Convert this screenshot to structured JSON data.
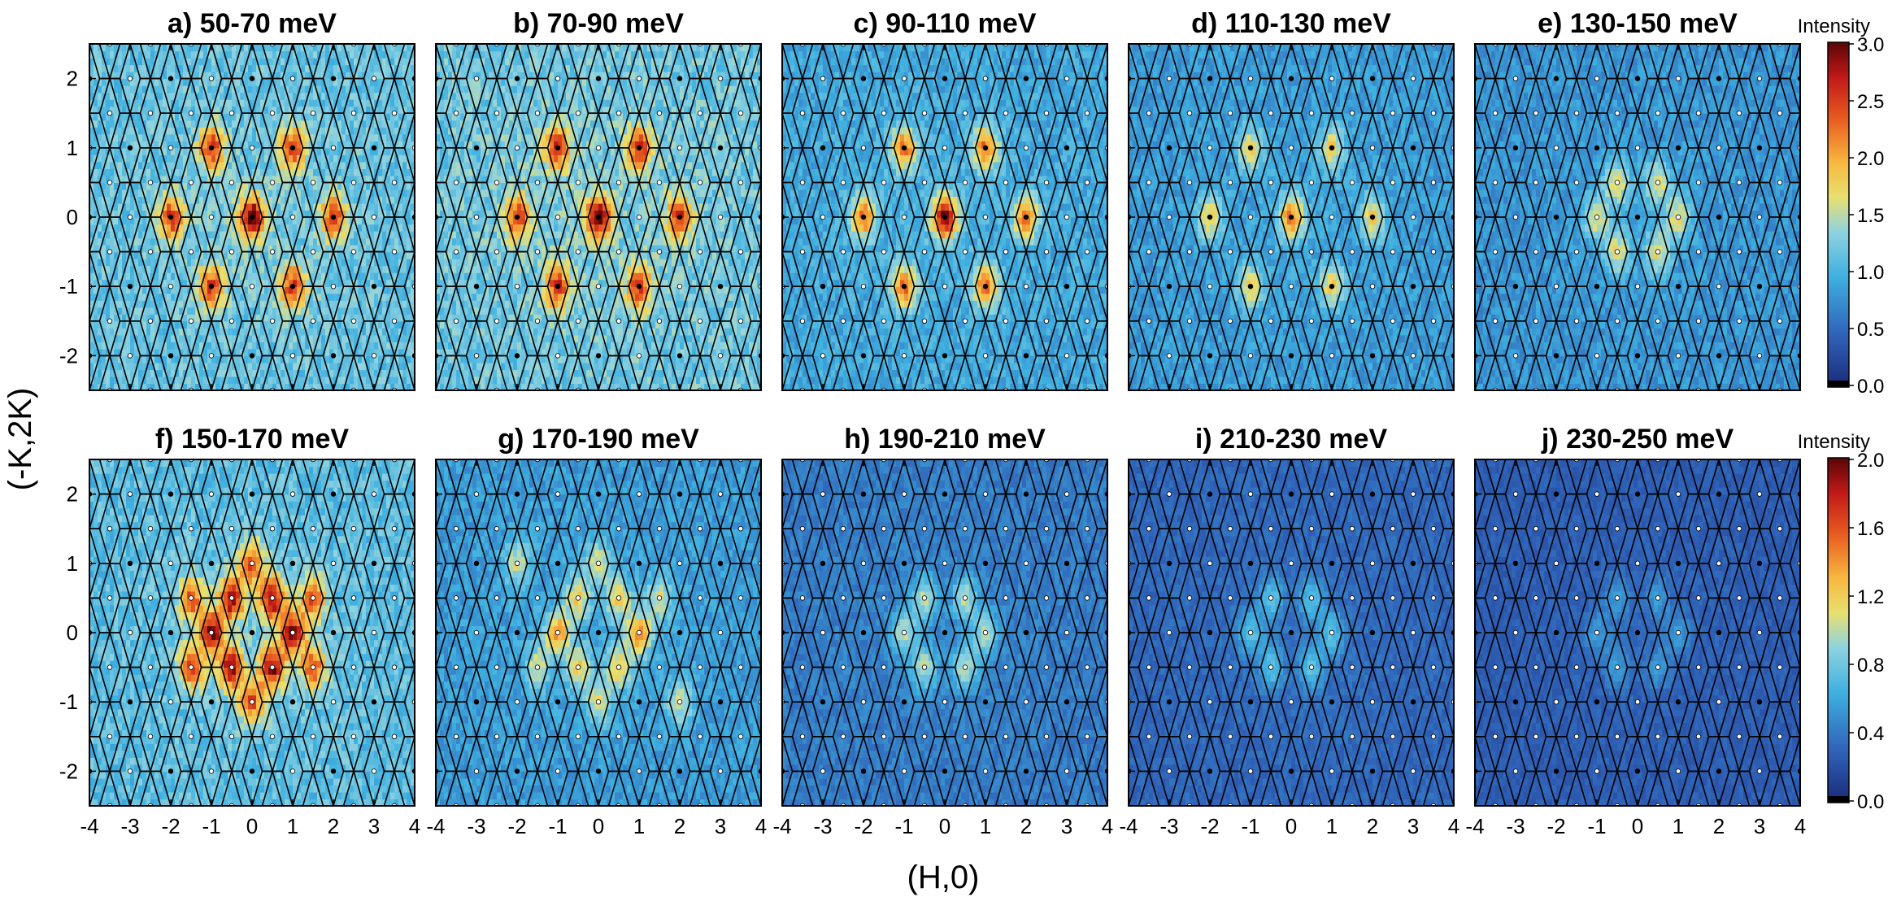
{
  "figure": {
    "ylabel": "(-K,2K)",
    "xlabel": "(H,0)",
    "x_ticks": [
      "-4",
      "-3",
      "-2",
      "-1",
      "0",
      "1",
      "2",
      "3",
      "4"
    ],
    "y_ticks": [
      "2",
      "1",
      "0",
      "-1",
      "-2"
    ],
    "colorbar_top": {
      "label": "Intensity",
      "ticks": [
        "3.0",
        "2.5",
        "2.0",
        "1.5",
        "1.0",
        "0.5",
        "0.0"
      ],
      "range": [
        0,
        3.0
      ]
    },
    "colorbar_bottom": {
      "label": "Intensity",
      "ticks": [
        "2.0",
        "1.6",
        "1.2",
        "0.8",
        "0.4",
        "0.0"
      ],
      "range": [
        0,
        2.0
      ]
    },
    "colors": {
      "low": "#1a3080",
      "mid": "#3fb0e0",
      "high_mid": "#f7c04a",
      "high": "#c81e1e",
      "max": "#6a0808"
    }
  },
  "chart_data": [
    {
      "type": "heatmap",
      "title": "a) 50-70 meV",
      "energy_range_meV": [
        50,
        70
      ],
      "xlim": [
        -4,
        4
      ],
      "ylim": [
        -2.5,
        2.5
      ],
      "colorbar": "top",
      "background": 1.25,
      "hot_spots": [
        {
          "x": 0,
          "y": 0,
          "intensity": 3.0
        },
        {
          "x": 1,
          "y": 1,
          "intensity": 2.6
        },
        {
          "x": -1,
          "y": 1,
          "intensity": 2.6
        },
        {
          "x": 2,
          "y": 0,
          "intensity": 2.6
        },
        {
          "x": -2,
          "y": 0,
          "intensity": 2.6
        },
        {
          "x": 1,
          "y": -1,
          "intensity": 2.6
        },
        {
          "x": -1,
          "y": -1,
          "intensity": 2.6
        }
      ]
    },
    {
      "type": "heatmap",
      "title": "b) 70-90 meV",
      "energy_range_meV": [
        70,
        90
      ],
      "xlim": [
        -4,
        4
      ],
      "ylim": [
        -2.5,
        2.5
      ],
      "colorbar": "top",
      "background": 1.3,
      "hot_spots": [
        {
          "x": 0,
          "y": 0,
          "intensity": 3.0
        },
        {
          "x": 1,
          "y": 1,
          "intensity": 2.6
        },
        {
          "x": -1,
          "y": 1,
          "intensity": 2.6
        },
        {
          "x": 2,
          "y": 0,
          "intensity": 2.6
        },
        {
          "x": -2,
          "y": 0,
          "intensity": 2.6
        },
        {
          "x": 1,
          "y": -1,
          "intensity": 2.6
        },
        {
          "x": -1,
          "y": -1,
          "intensity": 2.6
        }
      ]
    },
    {
      "type": "heatmap",
      "title": "c) 90-110 meV",
      "energy_range_meV": [
        90,
        110
      ],
      "xlim": [
        -4,
        4
      ],
      "ylim": [
        -2.5,
        2.5
      ],
      "colorbar": "top",
      "background": 1.0,
      "hot_spots": [
        {
          "x": 0,
          "y": 0,
          "intensity": 2.9
        },
        {
          "x": 1,
          "y": 1,
          "intensity": 2.3
        },
        {
          "x": -1,
          "y": 1,
          "intensity": 2.3
        },
        {
          "x": 2,
          "y": 0,
          "intensity": 2.3
        },
        {
          "x": -2,
          "y": 0,
          "intensity": 2.3
        },
        {
          "x": 1,
          "y": -1,
          "intensity": 2.3
        },
        {
          "x": -1,
          "y": -1,
          "intensity": 2.3
        }
      ]
    },
    {
      "type": "heatmap",
      "title": "d) 110-130 meV",
      "energy_range_meV": [
        110,
        130
      ],
      "xlim": [
        -4,
        4
      ],
      "ylim": [
        -2.5,
        2.5
      ],
      "colorbar": "top",
      "background": 0.9,
      "hot_spots": [
        {
          "x": 0,
          "y": 0,
          "intensity": 2.2
        },
        {
          "x": 1,
          "y": 1,
          "intensity": 1.8
        },
        {
          "x": -1,
          "y": 1,
          "intensity": 1.8
        },
        {
          "x": 2,
          "y": 0,
          "intensity": 1.8
        },
        {
          "x": -2,
          "y": 0,
          "intensity": 1.8
        },
        {
          "x": 1,
          "y": -1,
          "intensity": 1.8
        },
        {
          "x": -1,
          "y": -1,
          "intensity": 1.8
        }
      ]
    },
    {
      "type": "heatmap",
      "title": "e) 130-150 meV",
      "energy_range_meV": [
        130,
        150
      ],
      "xlim": [
        -4,
        4
      ],
      "ylim": [
        -2.5,
        2.5
      ],
      "colorbar": "top",
      "background": 0.85,
      "hot_spots": [
        {
          "x": 0.5,
          "y": 0.5,
          "intensity": 1.7
        },
        {
          "x": -0.5,
          "y": 0.5,
          "intensity": 1.7
        },
        {
          "x": 1,
          "y": 0,
          "intensity": 1.7
        },
        {
          "x": -1,
          "y": 0,
          "intensity": 1.7
        },
        {
          "x": 0.5,
          "y": -0.5,
          "intensity": 1.7
        },
        {
          "x": -0.5,
          "y": -0.5,
          "intensity": 1.7
        }
      ]
    },
    {
      "type": "heatmap",
      "title": "f) 150-170 meV",
      "energy_range_meV": [
        150,
        170
      ],
      "xlim": [
        -4,
        4
      ],
      "ylim": [
        -2.5,
        2.5
      ],
      "colorbar": "bottom",
      "background": 0.8,
      "hot_spots": [
        {
          "x": 0.5,
          "y": 0.5,
          "intensity": 1.9
        },
        {
          "x": -0.5,
          "y": 0.5,
          "intensity": 1.9
        },
        {
          "x": 1,
          "y": 0,
          "intensity": 1.9
        },
        {
          "x": -1,
          "y": 0,
          "intensity": 1.9
        },
        {
          "x": 0.5,
          "y": -0.5,
          "intensity": 1.9
        },
        {
          "x": -0.5,
          "y": -0.5,
          "intensity": 1.9
        },
        {
          "x": 0,
          "y": 1,
          "intensity": 1.6
        },
        {
          "x": 0,
          "y": -1,
          "intensity": 1.6
        },
        {
          "x": 1.5,
          "y": 0.5,
          "intensity": 1.6
        },
        {
          "x": -1.5,
          "y": 0.5,
          "intensity": 1.6
        },
        {
          "x": 1.5,
          "y": -0.5,
          "intensity": 1.6
        },
        {
          "x": -1.5,
          "y": -0.5,
          "intensity": 1.6
        }
      ]
    },
    {
      "type": "heatmap",
      "title": "g) 170-190 meV",
      "energy_range_meV": [
        170,
        190
      ],
      "xlim": [
        -4,
        4
      ],
      "ylim": [
        -2.5,
        2.5
      ],
      "colorbar": "bottom",
      "background": 0.6,
      "hot_spots": [
        {
          "x": 1,
          "y": 0,
          "intensity": 1.4
        },
        {
          "x": -1,
          "y": 0,
          "intensity": 1.4
        },
        {
          "x": 0.5,
          "y": 0.5,
          "intensity": 1.2
        },
        {
          "x": -0.5,
          "y": 0.5,
          "intensity": 1.2
        },
        {
          "x": 0.5,
          "y": -0.5,
          "intensity": 1.2
        },
        {
          "x": -0.5,
          "y": -0.5,
          "intensity": 1.2
        },
        {
          "x": 0,
          "y": 1,
          "intensity": 1.1
        },
        {
          "x": 0,
          "y": -1,
          "intensity": 1.1
        },
        {
          "x": 1.5,
          "y": 0.5,
          "intensity": 1.1
        },
        {
          "x": -1.5,
          "y": -0.5,
          "intensity": 1.1
        },
        {
          "x": 2,
          "y": -1,
          "intensity": 1.1
        },
        {
          "x": -2,
          "y": 1,
          "intensity": 1.1
        }
      ]
    },
    {
      "type": "heatmap",
      "title": "h) 190-210 meV",
      "energy_range_meV": [
        190,
        210
      ],
      "xlim": [
        -4,
        4
      ],
      "ylim": [
        -2.5,
        2.5
      ],
      "colorbar": "bottom",
      "background": 0.45,
      "hot_spots": [
        {
          "x": 0.5,
          "y": 0.5,
          "intensity": 1.0
        },
        {
          "x": -0.5,
          "y": 0.5,
          "intensity": 1.0
        },
        {
          "x": 1,
          "y": 0,
          "intensity": 1.0
        },
        {
          "x": -1,
          "y": 0,
          "intensity": 1.0
        },
        {
          "x": 0.5,
          "y": -0.5,
          "intensity": 1.0
        },
        {
          "x": -0.5,
          "y": -0.5,
          "intensity": 1.0
        }
      ]
    },
    {
      "type": "heatmap",
      "title": "i) 210-230 meV",
      "energy_range_meV": [
        210,
        230
      ],
      "xlim": [
        -4,
        4
      ],
      "ylim": [
        -2.5,
        2.5
      ],
      "colorbar": "bottom",
      "background": 0.35,
      "hot_spots": [
        {
          "x": 0.5,
          "y": 0.5,
          "intensity": 0.75
        },
        {
          "x": -0.5,
          "y": 0.5,
          "intensity": 0.75
        },
        {
          "x": 1,
          "y": 0,
          "intensity": 0.75
        },
        {
          "x": -1,
          "y": 0,
          "intensity": 0.75
        },
        {
          "x": 0.5,
          "y": -0.5,
          "intensity": 0.75
        },
        {
          "x": -0.5,
          "y": -0.5,
          "intensity": 0.75
        }
      ]
    },
    {
      "type": "heatmap",
      "title": "j) 230-250 meV",
      "energy_range_meV": [
        230,
        250
      ],
      "xlim": [
        -4,
        4
      ],
      "ylim": [
        -2.5,
        2.5
      ],
      "colorbar": "bottom",
      "background": 0.3,
      "hot_spots": [
        {
          "x": 0.5,
          "y": 0.5,
          "intensity": 0.55
        },
        {
          "x": -0.5,
          "y": 0.5,
          "intensity": 0.55
        },
        {
          "x": 1,
          "y": 0,
          "intensity": 0.55
        },
        {
          "x": -1,
          "y": 0,
          "intensity": 0.55
        },
        {
          "x": 0.5,
          "y": -0.5,
          "intensity": 0.55
        },
        {
          "x": -0.5,
          "y": -0.5,
          "intensity": 0.55
        }
      ]
    }
  ]
}
